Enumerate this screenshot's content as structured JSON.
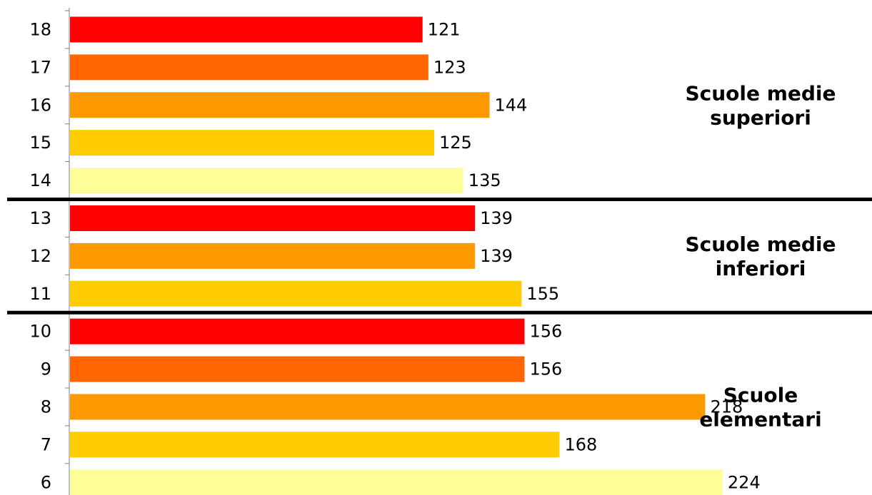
{
  "chart_data": {
    "type": "bar",
    "orientation": "horizontal",
    "title": "",
    "xlabel": "",
    "ylabel": "",
    "grid": false,
    "categories": [
      "18",
      "17",
      "16",
      "15",
      "14",
      "13",
      "12",
      "11",
      "10",
      "9",
      "8",
      "7",
      "6"
    ],
    "values": [
      121,
      123,
      144,
      125,
      135,
      139,
      139,
      155,
      156,
      156,
      218,
      168,
      224
    ],
    "bar_colors": [
      "#ff0000",
      "#ff6600",
      "#ff9900",
      "#ffcc00",
      "#ffff99",
      "#ff0000",
      "#ff9900",
      "#ffcc00",
      "#ff0000",
      "#ff6600",
      "#ff9900",
      "#ffcc00",
      "#ffff99"
    ],
    "xlim": [
      0,
      300
    ],
    "groups": [
      {
        "label_lines": [
          "Scuole medie",
          "superiori"
        ],
        "categories": [
          "18",
          "17",
          "16",
          "15",
          "14"
        ]
      },
      {
        "label_lines": [
          "Scuole medie",
          "inferiori"
        ],
        "categories": [
          "13",
          "12",
          "11"
        ]
      },
      {
        "label_lines": [
          "Scuole",
          "elementari"
        ],
        "categories": [
          "10",
          "9",
          "8",
          "7",
          "6"
        ]
      }
    ]
  }
}
